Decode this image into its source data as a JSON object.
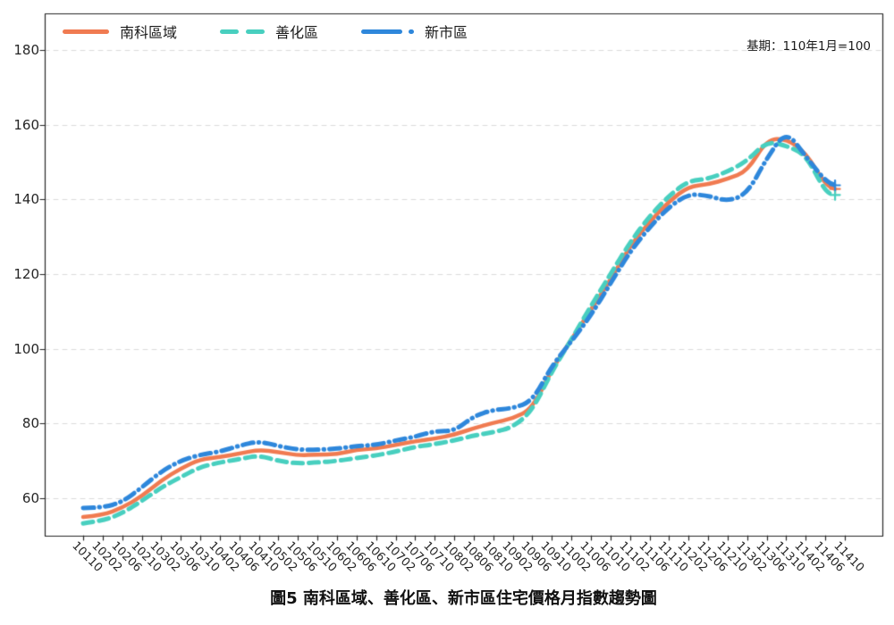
{
  "chart_data": {
    "type": "line",
    "title": "圖5 南科區域、善化區、新市區住宅價格月指數趨勢圖",
    "annotation": "基期：110年1月=100",
    "grid": "horizontal-dashed",
    "legend_position": "top-left-horizontal",
    "ylim": [
      50,
      189.8
    ],
    "yticks": [
      60,
      80,
      100,
      120,
      140,
      160,
      180
    ],
    "x_tick_labels": [
      "10110",
      "10202",
      "10206",
      "10210",
      "10302",
      "10306",
      "10310",
      "10402",
      "10406",
      "10410",
      "10502",
      "10506",
      "10510",
      "10602",
      "10606",
      "10610",
      "10702",
      "10706",
      "10710",
      "10802",
      "10806",
      "10810",
      "10902",
      "10906",
      "10910",
      "11002",
      "11006",
      "11010",
      "11102",
      "11106",
      "11110",
      "11202",
      "11206",
      "11210",
      "11302",
      "11306",
      "11310",
      "11402",
      "11406",
      "11410"
    ],
    "series": [
      {
        "name": "南科區域",
        "color": "#F07B51",
        "style": "solid",
        "end_marker": "+",
        "points": [
          [
            "10110",
            55.0
          ],
          [
            "10202",
            55.5
          ],
          [
            "10206",
            57.5
          ],
          [
            "10210",
            60.5
          ],
          [
            "10302",
            64.8
          ],
          [
            "10306",
            68.0
          ],
          [
            "10310",
            70.5
          ],
          [
            "10402",
            71.0
          ],
          [
            "10406",
            72.0
          ],
          [
            "10410",
            73.0
          ],
          [
            "10502",
            72.4
          ],
          [
            "10506",
            71.5
          ],
          [
            "10510",
            71.7
          ],
          [
            "10602",
            71.8
          ],
          [
            "10606",
            73.0
          ],
          [
            "10610",
            73.3
          ],
          [
            "10702",
            74.3
          ],
          [
            "10706",
            75.3
          ],
          [
            "10710",
            76.0
          ],
          [
            "10802",
            77.0
          ],
          [
            "10806",
            78.8
          ],
          [
            "10810",
            80.2
          ],
          [
            "10902",
            81.4
          ],
          [
            "10906",
            84.0
          ],
          [
            "10910",
            94.5
          ],
          [
            "11002",
            102.5
          ],
          [
            "11006",
            110.5
          ],
          [
            "11010",
            118.5
          ],
          [
            "11102",
            127.5
          ],
          [
            "11106",
            134.0
          ],
          [
            "11110",
            139.5
          ],
          [
            "11202",
            143.5
          ],
          [
            "11206",
            144.0
          ],
          [
            "11210",
            145.5
          ],
          [
            "11302",
            147.5
          ],
          [
            "11306",
            156.0
          ],
          [
            "11310",
            156.3
          ],
          [
            "11402",
            152.5
          ],
          [
            "11406",
            144.0
          ],
          [
            "11408",
            142.8
          ]
        ]
      },
      {
        "name": "善化區",
        "color": "#48CFBF",
        "style": "dashed",
        "end_marker": "+",
        "points": [
          [
            "10110",
            53.3
          ],
          [
            "10202",
            54.0
          ],
          [
            "10206",
            56.0
          ],
          [
            "10210",
            59.3
          ],
          [
            "10302",
            62.9
          ],
          [
            "10306",
            65.7
          ],
          [
            "10310",
            68.4
          ],
          [
            "10402",
            69.6
          ],
          [
            "10406",
            70.5
          ],
          [
            "10410",
            71.5
          ],
          [
            "10502",
            70.0
          ],
          [
            "10506",
            69.3
          ],
          [
            "10510",
            69.6
          ],
          [
            "10602",
            70.0
          ],
          [
            "10606",
            70.8
          ],
          [
            "10610",
            71.5
          ],
          [
            "10702",
            72.5
          ],
          [
            "10706",
            73.8
          ],
          [
            "10710",
            74.5
          ],
          [
            "10802",
            75.5
          ],
          [
            "10806",
            76.8
          ],
          [
            "10810",
            77.7
          ],
          [
            "10902",
            79.0
          ],
          [
            "10906",
            83.5
          ],
          [
            "10910",
            94.0
          ],
          [
            "11002",
            102.5
          ],
          [
            "11006",
            111.5
          ],
          [
            "11010",
            120.0
          ],
          [
            "11102",
            128.5
          ],
          [
            "11106",
            135.5
          ],
          [
            "11110",
            141.0
          ],
          [
            "11202",
            145.0
          ],
          [
            "11206",
            145.5
          ],
          [
            "11210",
            147.5
          ],
          [
            "11302",
            150.3
          ],
          [
            "11306",
            155.6
          ],
          [
            "11310",
            154.4
          ],
          [
            "11402",
            152.0
          ],
          [
            "11406",
            142.0
          ],
          [
            "11408",
            141.2
          ]
        ]
      },
      {
        "name": "新市區",
        "color": "#2E87DB",
        "style": "dashdot",
        "end_marker": "+",
        "points": [
          [
            "10110",
            57.4
          ],
          [
            "10202",
            57.5
          ],
          [
            "10206",
            59.0
          ],
          [
            "10210",
            62.9
          ],
          [
            "10302",
            67.2
          ],
          [
            "10306",
            70.1
          ],
          [
            "10310",
            71.7
          ],
          [
            "10402",
            72.5
          ],
          [
            "10406",
            74.1
          ],
          [
            "10410",
            75.3
          ],
          [
            "10502",
            74.0
          ],
          [
            "10506",
            73.0
          ],
          [
            "10510",
            73.0
          ],
          [
            "10602",
            73.3
          ],
          [
            "10606",
            74.0
          ],
          [
            "10610",
            74.3
          ],
          [
            "10702",
            75.5
          ],
          [
            "10706",
            76.5
          ],
          [
            "10710",
            78.0
          ],
          [
            "10802",
            78.0
          ],
          [
            "10806",
            82.0
          ],
          [
            "10810",
            83.7
          ],
          [
            "10902",
            84.1
          ],
          [
            "10906",
            86.0
          ],
          [
            "10910",
            95.5
          ],
          [
            "11002",
            102.0
          ],
          [
            "11006",
            109.0
          ],
          [
            "11010",
            117.5
          ],
          [
            "11102",
            126.0
          ],
          [
            "11106",
            132.5
          ],
          [
            "11110",
            138.0
          ],
          [
            "11202",
            141.5
          ],
          [
            "11206",
            141.0
          ],
          [
            "11210",
            139.5
          ],
          [
            "11302",
            141.5
          ],
          [
            "11306",
            151.0
          ],
          [
            "11310",
            158.5
          ],
          [
            "11402",
            151.5
          ],
          [
            "11406",
            145.0
          ],
          [
            "11408",
            143.8
          ]
        ]
      }
    ],
    "colors": {
      "grid": "#DBDBDB",
      "spine": "#262626",
      "background": "#FFFFFF"
    }
  }
}
